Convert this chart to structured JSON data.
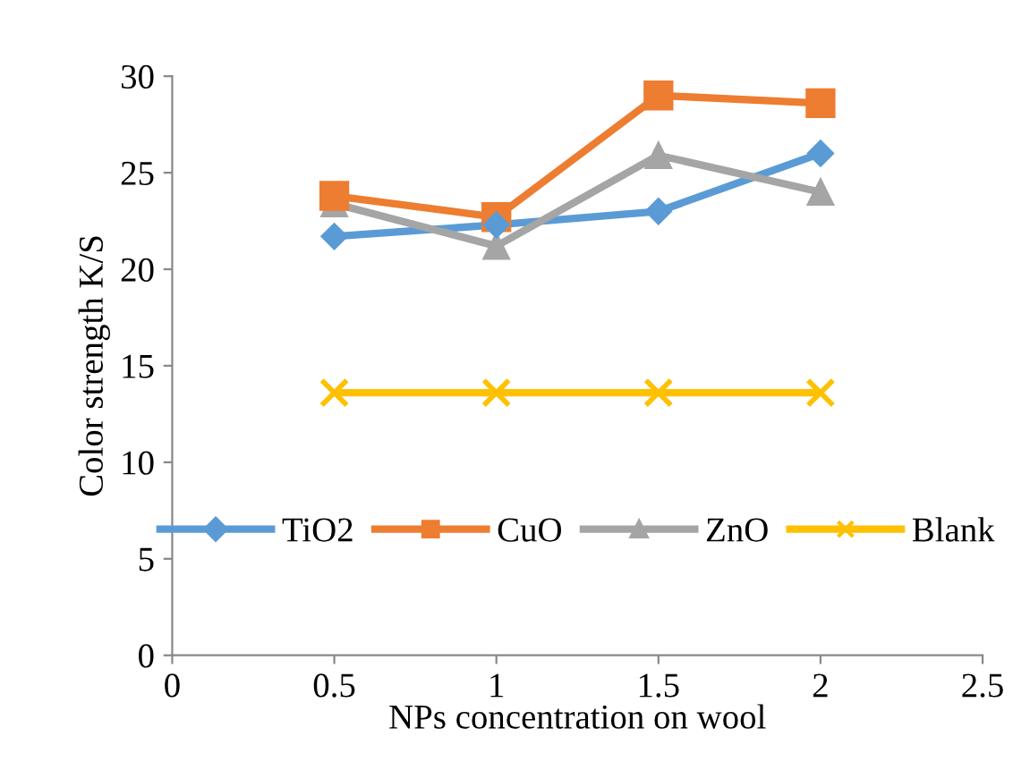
{
  "chart_data": {
    "type": "line",
    "xlabel": "NPs concentration on wool",
    "ylabel": "Color strength K/S",
    "x": [
      0.5,
      1,
      1.5,
      2
    ],
    "series": [
      {
        "name": "TiO2",
        "color": "#5b9bd5",
        "marker": "diamond",
        "values": [
          21.7,
          22.3,
          23.0,
          26.0
        ]
      },
      {
        "name": "CuO",
        "color": "#ed7d31",
        "marker": "square",
        "values": [
          23.8,
          22.7,
          29.0,
          28.6
        ]
      },
      {
        "name": "ZnO",
        "color": "#a5a5a5",
        "marker": "triangle",
        "values": [
          23.4,
          21.2,
          25.9,
          24.0
        ]
      },
      {
        "name": "Blank",
        "color": "#ffc000",
        "marker": "cross",
        "values": [
          13.6,
          13.6,
          13.6,
          13.6
        ]
      }
    ],
    "xlim": [
      0,
      2.5
    ],
    "xticks": [
      0,
      0.5,
      1,
      1.5,
      2,
      2.5
    ],
    "ylim": [
      0,
      30
    ],
    "yticks": [
      0,
      5,
      10,
      15,
      20,
      25,
      30
    ],
    "grid": false,
    "legend": "bottom",
    "line_style": "solid"
  }
}
